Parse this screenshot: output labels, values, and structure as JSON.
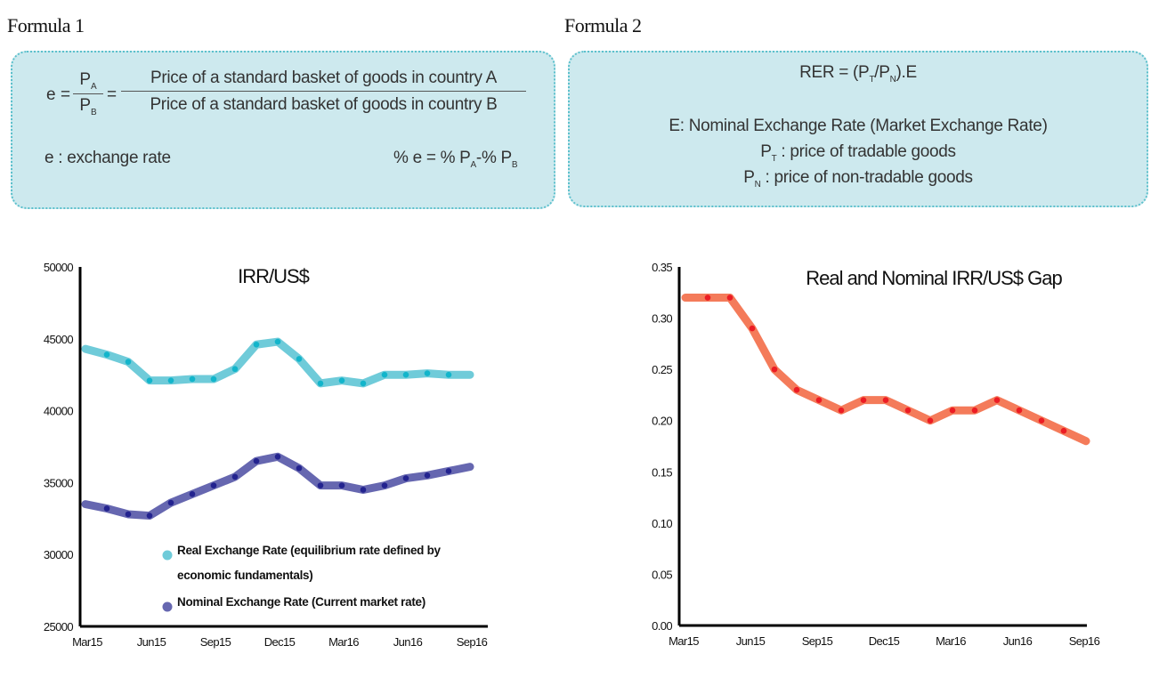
{
  "formula1": {
    "heading": "Formula 1",
    "lhs": "e",
    "eq1": "=",
    "num_var": "P",
    "num_sub": "A",
    "den_var": "P",
    "den_sub": "B",
    "eq2": "=",
    "numerator_text": "Price of a standard basket of goods in country A",
    "denominator_text": "Price of a standard basket of goods in country B",
    "definition": "e : exchange rate",
    "pct_lhs": "% e  = % P",
    "pct_sub_a": "A",
    "pct_mid": "-% P",
    "pct_sub_b": "B"
  },
  "formula2": {
    "heading": "Formula 2",
    "eq_pre": "RER = (P",
    "eq_sub_t": "T",
    "eq_mid": "/P",
    "eq_sub_n": "N",
    "eq_post": ").E",
    "line_e": "E: Nominal Exchange Rate (Market Exchange Rate)",
    "pt_var": "P",
    "pt_sub": "T",
    "pt_text": " : price of tradable goods",
    "pn_var": "P",
    "pn_sub": "N",
    "pn_text": "  : price of non-tradable goods"
  },
  "colors": {
    "box_fill": "#cde9ee",
    "box_border": "#5cc0cc",
    "real_line": "#6fcbd9",
    "real_marker": "#12b5cb",
    "nominal_line": "#6667b0",
    "nominal_marker": "#23238f",
    "gap_line": "#f47b5a",
    "gap_marker": "#ec1c24"
  },
  "chart_data": [
    {
      "type": "line",
      "title": "IRR/US$",
      "xlabel": "",
      "ylabel": "",
      "ylim": [
        25000,
        50000
      ],
      "yticks": [
        "50000",
        "45000",
        "40000",
        "35000",
        "30000",
        "25000"
      ],
      "xtick_labels": [
        "Mar15",
        "Jun15",
        "Sep15",
        "Dec15",
        "Mar16",
        "Jun16",
        "Sep16"
      ],
      "x": [
        "Mar15",
        "Apr15",
        "May15",
        "Jun15",
        "Jul15",
        "Aug15",
        "Sep15",
        "Oct15",
        "Nov15",
        "Dec15",
        "Jan16",
        "Feb16",
        "Mar16",
        "Apr16",
        "May16",
        "Jun16",
        "Jul16",
        "Aug16",
        "Sep16"
      ],
      "grid": false,
      "legend_placement": "bottom-center",
      "series": [
        {
          "name": "Real Exchange Rate (equilibrium rate defined by economic fundamentals)",
          "legend_line1": "Real Exchange Rate (equilibrium rate defined by",
          "legend_line2": "economic fundamentals)",
          "values": [
            44300,
            43900,
            43400,
            42100,
            42100,
            42200,
            42200,
            42900,
            44600,
            44800,
            43600,
            41900,
            42100,
            41900,
            42500,
            42500,
            42600,
            42500,
            42500
          ]
        },
        {
          "name": "Nominal Exchange Rate (Current market rate)",
          "legend_line1": "Nominal Exchange Rate (Current market rate)",
          "values": [
            33500,
            33200,
            32800,
            32700,
            33600,
            34200,
            34800,
            35400,
            36500,
            36800,
            36000,
            34800,
            34800,
            34500,
            34800,
            35300,
            35500,
            35800,
            36100
          ]
        }
      ]
    },
    {
      "type": "line",
      "title": "Real and Nominal IRR/US$ Gap",
      "xlabel": "",
      "ylabel": "",
      "ylim": [
        0,
        0.35
      ],
      "yticks": [
        "0.35",
        "0.30",
        "0.25",
        "0.20",
        "0.15",
        "0.10",
        "0.05",
        "0.00"
      ],
      "xtick_labels": [
        "Mar15",
        "Jun15",
        "Sep15",
        "Dec15",
        "Mar16",
        "Jun16",
        "Sep16"
      ],
      "x": [
        "Mar15",
        "Apr15",
        "May15",
        "Jun15",
        "Jul15",
        "Aug15",
        "Sep15",
        "Oct15",
        "Nov15",
        "Dec15",
        "Jan16",
        "Feb16",
        "Mar16",
        "Apr16",
        "May16",
        "Jun16",
        "Jul16",
        "Aug16",
        "Sep16"
      ],
      "grid": false,
      "series": [
        {
          "name": "Gap",
          "values": [
            0.32,
            0.32,
            0.32,
            0.29,
            0.25,
            0.23,
            0.22,
            0.21,
            0.22,
            0.22,
            0.21,
            0.2,
            0.21,
            0.21,
            0.22,
            0.21,
            0.2,
            0.19,
            0.18
          ]
        }
      ]
    }
  ]
}
